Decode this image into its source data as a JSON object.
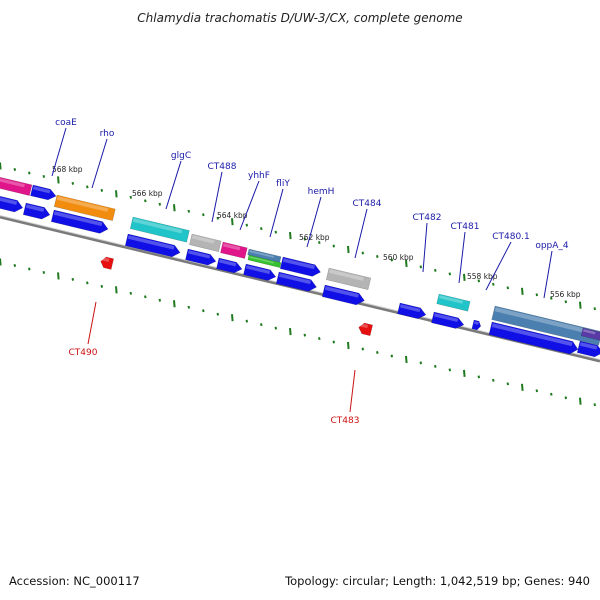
{
  "title": "Chlamydia trachomatis D/UW-3/CX, complete genome",
  "footer": {
    "accession": "Accession: NC_000117",
    "topology": "Topology: circular; Length: 1,042,519 bp; Genes: 940"
  },
  "kbp_ticks": [
    "568 kbp",
    "566 kbp",
    "564 kbp",
    "562 kbp",
    "560 kbp",
    "558 kbp",
    "556 kbp"
  ],
  "gene_labels_top": [
    "coaE",
    "rho",
    "glgC",
    "CT488",
    "yhhF",
    "fliY",
    "hemH",
    "CT484",
    "CT482",
    "CT481",
    "CT480.1",
    "oppA_4"
  ],
  "gene_labels_bottom": [
    "CT490",
    "CT483"
  ],
  "colors": {
    "cds": "#1010e6",
    "label_top": "#1a1aa8",
    "label_bottom": "#cc1111",
    "tick": "#1f7a1f",
    "backbone": "#7a7a7a",
    "orange": "#f28c0f",
    "magenta": "#e0158a",
    "cyan": "#21c4c8",
    "gray": "#b4b4b4",
    "steel": "#4a7faf",
    "green": "#35c12e",
    "red": "#e61010"
  }
}
